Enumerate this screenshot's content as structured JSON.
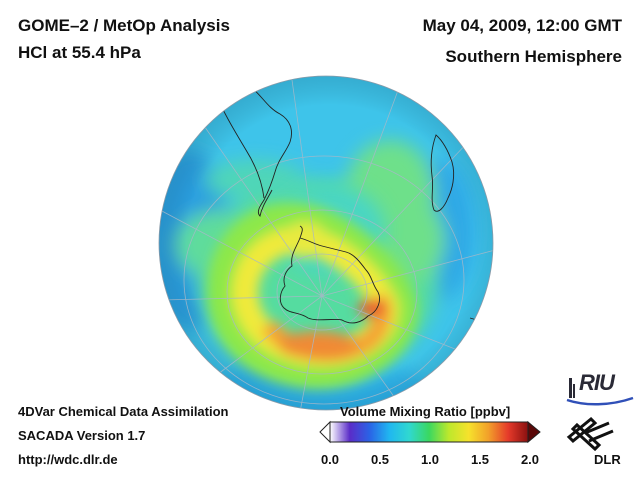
{
  "header": {
    "product": "GOME–2 / MetOp Analysis",
    "quantity": "HCl at 55.4 hPa",
    "datetime": "May 04, 2009, 12:00 GMT",
    "region": "Southern Hemisphere"
  },
  "footer": {
    "method": "4DVar Chemical Data Assimilation",
    "version": "SACADA Version 1.7",
    "url": "http://wdc.dlr.de"
  },
  "colorbar": {
    "title": "Volume Mixing Ratio [ppbv]",
    "ticks": [
      "0.0",
      "0.5",
      "1.0",
      "1.5",
      "2.0"
    ],
    "colors": [
      "#ffffff",
      "#5a2cc8",
      "#2a63e6",
      "#20b7f0",
      "#30d8d0",
      "#3ad860",
      "#bde82c",
      "#f6e22c",
      "#f2a02a",
      "#e53a2a",
      "#8a1010"
    ]
  },
  "logos": {
    "riu": "RIU",
    "dlr": "DLR"
  },
  "map": {
    "projection": "orthographic south polar",
    "colors": {
      "ocean_field": "#46c8f2",
      "background_field": "#3ec4ea",
      "low": "#2a9fe0",
      "mid": "#55dca0",
      "green": "#7ae84e",
      "yellow": "#f0ea3a",
      "orange": "#f5a236",
      "red": "#ea5a2e"
    }
  }
}
